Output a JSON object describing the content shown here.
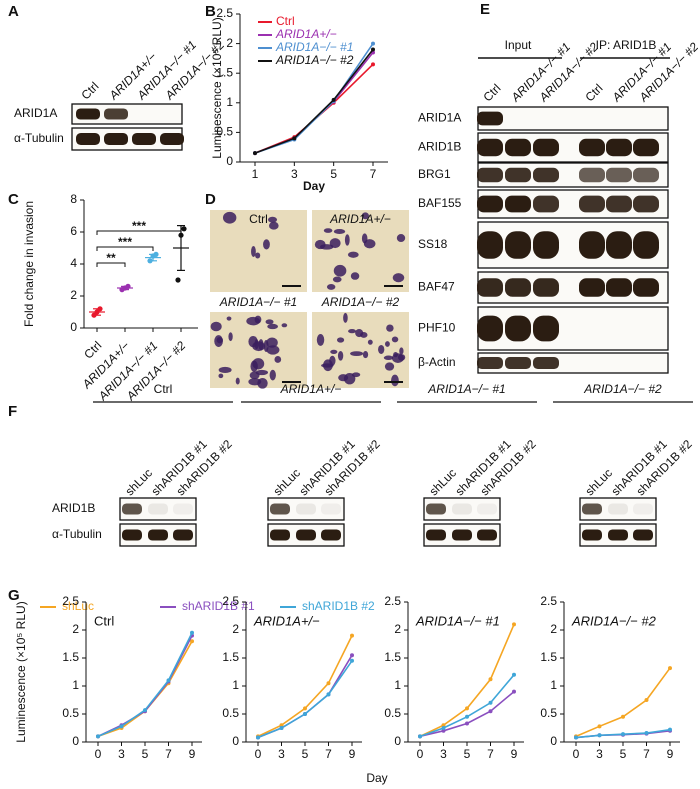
{
  "panel_a": {
    "label": "A",
    "lanes": [
      "Ctrl",
      "ARID1A+/−",
      "ARID1A−/− #1",
      "ARID1A−/− #2"
    ],
    "rows": [
      "ARID1A",
      "α-Tubulin"
    ]
  },
  "panel_d": {
    "label": "D",
    "images": [
      "Ctrl",
      "ARID1A+/−",
      "ARID1A−/− #1",
      "ARID1A−/− #2"
    ]
  },
  "panel_e": {
    "label": "E",
    "groups": [
      "Input",
      "IP: ARID1B"
    ],
    "lanes": [
      "Ctrl",
      "ARID1A−/− #1",
      "ARID1A−/− #2",
      "Ctrl",
      "ARID1A−/− #1",
      "ARID1A−/− #2"
    ],
    "rows": [
      "ARID1A",
      "ARID1B",
      "BRG1",
      "BAF155",
      "SS18",
      "BAF47",
      "PHF10",
      "β-Actin"
    ]
  },
  "panel_f": {
    "label": "F",
    "groups": [
      "Ctrl",
      "ARID1A+/−",
      "ARID1A−/− #1",
      "ARID1A−/− #2"
    ],
    "lanes": [
      "shLuc",
      "shARID1B #1",
      "shARID1B #2"
    ],
    "rows": [
      "ARID1B",
      "α-Tubulin"
    ]
  },
  "chart_data": [
    {
      "type": "line",
      "panel": "B",
      "ylabel": "Luminescence (×10⁵ RLU)",
      "xlabel": "Day",
      "categories": [
        1,
        3,
        5,
        7
      ],
      "ylim": [
        0,
        2.5
      ],
      "yticks": [
        0,
        0.5,
        1,
        1.5,
        2,
        2.5
      ],
      "series": [
        {
          "name": "Ctrl",
          "color": "#e8192c",
          "values": [
            0.15,
            0.42,
            1.0,
            1.65
          ]
        },
        {
          "name": "ARID1A+/−",
          "color": "#9b30b0",
          "values": [
            0.15,
            0.4,
            1.02,
            1.85
          ]
        },
        {
          "name": "ARID1A−/− #1",
          "color": "#4e8fd0",
          "values": [
            0.15,
            0.38,
            1.03,
            2.0
          ]
        },
        {
          "name": "ARID1A−/− #2",
          "color": "#111111",
          "values": [
            0.15,
            0.4,
            1.05,
            1.9
          ]
        }
      ]
    },
    {
      "type": "dot",
      "panel": "C",
      "ylabel": "Fold change in invasion",
      "categories": [
        "Ctrl",
        "ARID1A+/−",
        "ARID1A−/− #1",
        "ARID1A−/− #2"
      ],
      "colors": [
        "#e8192c",
        "#9b30b0",
        "#4eb0e0",
        "#111111"
      ],
      "values": [
        [
          0.8,
          1.0,
          1.2
        ],
        [
          2.4,
          2.5,
          2.6
        ],
        [
          4.2,
          4.5,
          4.6
        ],
        [
          3.0,
          5.8,
          6.2
        ]
      ],
      "means": [
        1.0,
        2.5,
        4.4,
        5.0
      ],
      "errors": [
        0.2,
        0.1,
        0.2,
        1.4
      ],
      "ylim": [
        0,
        8
      ],
      "yticks": [
        0,
        2,
        4,
        6,
        8
      ],
      "significance": [
        {
          "from": 0,
          "to": 1,
          "label": "**"
        },
        {
          "from": 0,
          "to": 2,
          "label": "***"
        },
        {
          "from": 0,
          "to": 3,
          "label": "***"
        }
      ]
    },
    {
      "type": "multi-line",
      "panel": "G",
      "ylabel": "Luminescence (×10⁵ RLU)",
      "xlabel": "Day",
      "categories": [
        0,
        3,
        5,
        7,
        9
      ],
      "ylim": [
        0,
        2.5
      ],
      "yticks": [
        0,
        0.5,
        1,
        1.5,
        2,
        2.5
      ],
      "legend": [
        {
          "name": "shLuc",
          "color": "#f5a623"
        },
        {
          "name": "shARID1B #1",
          "color": "#8a4fbf"
        },
        {
          "name": "shARID1B #2",
          "color": "#3fa6d8"
        }
      ],
      "panels": [
        {
          "title": "Ctrl",
          "series": [
            {
              "values": [
                0.1,
                0.25,
                0.55,
                1.05,
                1.8
              ]
            },
            {
              "values": [
                0.1,
                0.3,
                0.55,
                1.08,
                1.9
              ]
            },
            {
              "values": [
                0.1,
                0.28,
                0.57,
                1.1,
                1.95
              ]
            }
          ]
        },
        {
          "title": "ARID1A+/−",
          "series": [
            {
              "values": [
                0.1,
                0.3,
                0.6,
                1.05,
                1.9
              ]
            },
            {
              "values": [
                0.08,
                0.25,
                0.5,
                0.85,
                1.55
              ]
            },
            {
              "values": [
                0.08,
                0.25,
                0.5,
                0.85,
                1.45
              ]
            }
          ]
        },
        {
          "title": "ARID1A−/− #1",
          "series": [
            {
              "values": [
                0.1,
                0.3,
                0.6,
                1.12,
                2.1
              ]
            },
            {
              "values": [
                0.1,
                0.2,
                0.33,
                0.55,
                0.9
              ]
            },
            {
              "values": [
                0.1,
                0.25,
                0.45,
                0.7,
                1.2
              ]
            }
          ]
        },
        {
          "title": "ARID1A−/− #2",
          "series": [
            {
              "values": [
                0.1,
                0.28,
                0.45,
                0.75,
                1.32
              ]
            },
            {
              "values": [
                0.08,
                0.12,
                0.13,
                0.15,
                0.2
              ]
            },
            {
              "values": [
                0.08,
                0.12,
                0.14,
                0.16,
                0.22
              ]
            }
          ]
        }
      ]
    }
  ]
}
